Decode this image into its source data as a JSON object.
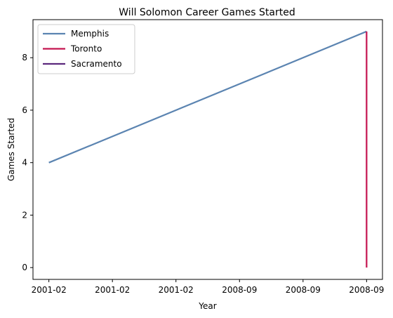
{
  "chart_data": {
    "type": "line",
    "title": "Will Solomon Career Games Started",
    "xlabel": "Year",
    "ylabel": "Games Started",
    "x_tick_labels": [
      "2001-02",
      "2001-02",
      "2001-02",
      "2008-09",
      "2008-09",
      "2008-09"
    ],
    "x_tick_positions": [
      0.0,
      0.2,
      0.4,
      0.6,
      0.8,
      1.0
    ],
    "xlim": [
      -0.05,
      1.05
    ],
    "y_ticks": [
      0,
      2,
      4,
      6,
      8
    ],
    "ylim": [
      -0.45,
      9.45
    ],
    "grid": false,
    "legend_placement": "upper-left",
    "series": [
      {
        "name": "Memphis",
        "color": "#5b84b1",
        "points": [
          [
            0.0,
            4
          ],
          [
            1.0,
            9
          ]
        ]
      },
      {
        "name": "Toronto",
        "color": "#c4144f",
        "points": [
          [
            1.0,
            9
          ],
          [
            1.0,
            0
          ]
        ]
      },
      {
        "name": "Sacramento",
        "color": "#5c2a7e",
        "points": []
      }
    ]
  }
}
